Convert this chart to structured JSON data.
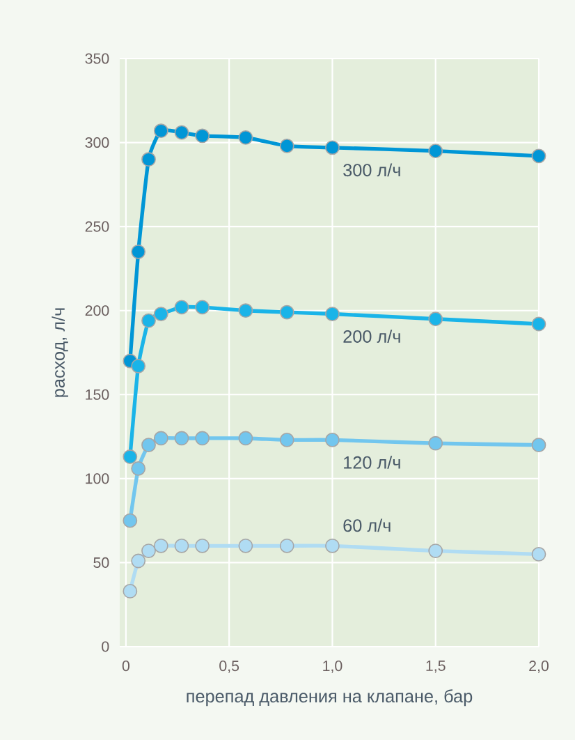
{
  "chart_data": {
    "type": "line",
    "xlabel": "перепад давления на клапане, бар",
    "ylabel": "расход, л/ч",
    "xlim": [
      -0.03,
      2.0
    ],
    "ylim": [
      0,
      350
    ],
    "xticks": [
      {
        "value": 0,
        "label": "0"
      },
      {
        "value": 0.5,
        "label": "0,5"
      },
      {
        "value": 1.0,
        "label": "1,0"
      },
      {
        "value": 1.5,
        "label": "1,5"
      },
      {
        "value": 2.0,
        "label": "2,0"
      }
    ],
    "yticks": [
      0,
      50,
      100,
      150,
      200,
      250,
      300,
      350
    ],
    "grid": true,
    "legend": false,
    "marker": "circle",
    "line_style": "solid",
    "x": [
      0.02,
      0.06,
      0.11,
      0.17,
      0.27,
      0.37,
      0.58,
      0.78,
      1.0,
      1.5,
      2.0
    ],
    "series": [
      {
        "name": "300 л/ч",
        "color": "#0096d6",
        "values": [
          170,
          235,
          290,
          307,
          306,
          304,
          303,
          298,
          297,
          295,
          292
        ]
      },
      {
        "name": "200 л/ч",
        "color": "#1ab4e8",
        "values": [
          113,
          167,
          194,
          198,
          202,
          202,
          200,
          199,
          198,
          195,
          192
        ]
      },
      {
        "name": "120 л/ч",
        "color": "#72c6ee",
        "values": [
          75,
          106,
          120,
          124,
          124,
          124,
          124,
          123,
          123,
          121,
          120
        ]
      },
      {
        "name": "60 л/ч",
        "color": "#b0dcf3",
        "values": [
          33,
          51,
          57,
          60,
          60,
          60,
          60,
          60,
          60,
          57,
          55
        ]
      }
    ]
  }
}
